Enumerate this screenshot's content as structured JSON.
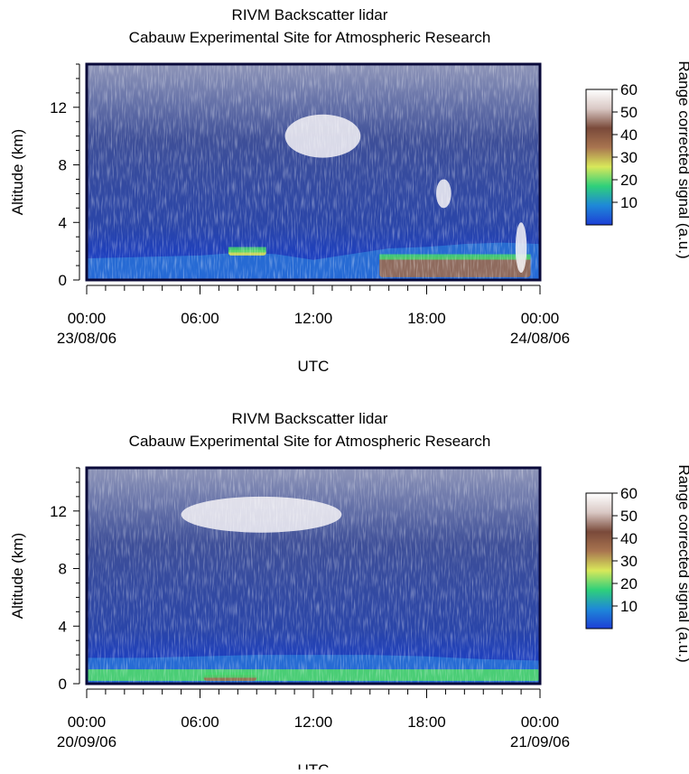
{
  "chart_data": [
    {
      "type": "heatmap",
      "title": "RIVM Backscatter lidar",
      "subtitle": "Cabauw Experimental Site for Atmospheric Research",
      "xlabel": "UTC",
      "ylabel": "Altitude (km)",
      "xlim": [
        "23/08/06 00:00",
        "24/08/06 00:00"
      ],
      "x_ticks": [
        {
          "time": "00:00",
          "date": "23/08/06"
        },
        {
          "time": "06:00",
          "date": ""
        },
        {
          "time": "12:00",
          "date": ""
        },
        {
          "time": "18:00",
          "date": ""
        },
        {
          "time": "00:00",
          "date": "24/08/06"
        }
      ],
      "ylim": [
        0,
        15
      ],
      "y_ticks": [
        "0",
        "4",
        "8",
        "12"
      ],
      "colorbar": {
        "label": "Range corrected signal (a.u.)",
        "range": [
          0,
          60
        ],
        "ticks": [
          "10",
          "20",
          "30",
          "40",
          "50",
          "60"
        ],
        "colors": [
          "#1d3fd6",
          "#1e88d8",
          "#2fd07a",
          "#d9e85a",
          "#a97550",
          "#7a4a3a",
          "#d9c8c4",
          "#ffffff"
        ]
      },
      "features": {
        "boundary_layer_top_km": [
          {
            "hour": 0,
            "km": 1.5
          },
          {
            "hour": 3,
            "km": 1.6
          },
          {
            "hour": 6,
            "km": 1.7
          },
          {
            "hour": 8,
            "km": 1.9
          },
          {
            "hour": 10,
            "km": 1.8
          },
          {
            "hour": 12,
            "km": 1.4
          },
          {
            "hour": 14,
            "km": 1.8
          },
          {
            "hour": 16,
            "km": 2.2
          },
          {
            "hour": 18,
            "km": 2.3
          },
          {
            "hour": 20,
            "km": 2.5
          },
          {
            "hour": 22,
            "km": 2.6
          },
          {
            "hour": 24,
            "km": 2.5
          }
        ],
        "high_signal_layers": [
          {
            "start_hour": 7.5,
            "end_hour": 9.5,
            "bottom_km": 1.7,
            "top_km": 2.1,
            "level": 35
          },
          {
            "start_hour": 15.5,
            "end_hour": 23.5,
            "bottom_km": 0.2,
            "top_km": 1.6,
            "level": 45
          }
        ],
        "clouds": [
          {
            "start_hour": 10.5,
            "end_hour": 14.5,
            "bottom_km": 8.5,
            "top_km": 11.5,
            "level": 60
          },
          {
            "start_hour": 18.5,
            "end_hour": 19.3,
            "bottom_km": 5,
            "top_km": 7,
            "level": 60
          },
          {
            "start_hour": 22.7,
            "end_hour": 23.3,
            "bottom_km": 0.5,
            "top_km": 4,
            "level": 60
          }
        ]
      }
    },
    {
      "type": "heatmap",
      "title": "RIVM Backscatter lidar",
      "subtitle": "Cabauw Experimental Site for Atmospheric Research",
      "xlabel": "UTC",
      "ylabel": "Altitude (km)",
      "xlim": [
        "20/09/06 00:00",
        "21/09/06 00:00"
      ],
      "x_ticks": [
        {
          "time": "00:00",
          "date": "20/09/06"
        },
        {
          "time": "06:00",
          "date": ""
        },
        {
          "time": "12:00",
          "date": ""
        },
        {
          "time": "18:00",
          "date": ""
        },
        {
          "time": "00:00",
          "date": "21/09/06"
        }
      ],
      "ylim": [
        0,
        15
      ],
      "y_ticks": [
        "0",
        "4",
        "8",
        "12"
      ],
      "colorbar": {
        "label": "Range corrected signal (a.u.)",
        "range": [
          0,
          60
        ],
        "ticks": [
          "10",
          "20",
          "30",
          "40",
          "50",
          "60"
        ],
        "colors": [
          "#1d3fd6",
          "#1e88d8",
          "#2fd07a",
          "#d9e85a",
          "#a97550",
          "#7a4a3a",
          "#d9c8c4",
          "#ffffff"
        ]
      },
      "features": {
        "boundary_layer_top_km": [
          {
            "hour": 0,
            "km": 1.8
          },
          {
            "hour": 3,
            "km": 1.8
          },
          {
            "hour": 6,
            "km": 1.9
          },
          {
            "hour": 9,
            "km": 2.0
          },
          {
            "hour": 12,
            "km": 2.0
          },
          {
            "hour": 15,
            "km": 2.0
          },
          {
            "hour": 18,
            "km": 1.9
          },
          {
            "hour": 21,
            "km": 1.7
          },
          {
            "hour": 24,
            "km": 1.6
          }
        ],
        "high_signal_layers": [
          {
            "start_hour": 0,
            "end_hour": 24,
            "bottom_km": 0.2,
            "top_km": 1.0,
            "level": 22
          },
          {
            "start_hour": 6.2,
            "end_hour": 9.0,
            "bottom_km": 0.2,
            "top_km": 0.6,
            "level": 45
          }
        ],
        "clouds": [
          {
            "start_hour": 5,
            "end_hour": 13.5,
            "bottom_km": 10.5,
            "top_km": 13.0,
            "level": 60
          }
        ]
      }
    }
  ]
}
